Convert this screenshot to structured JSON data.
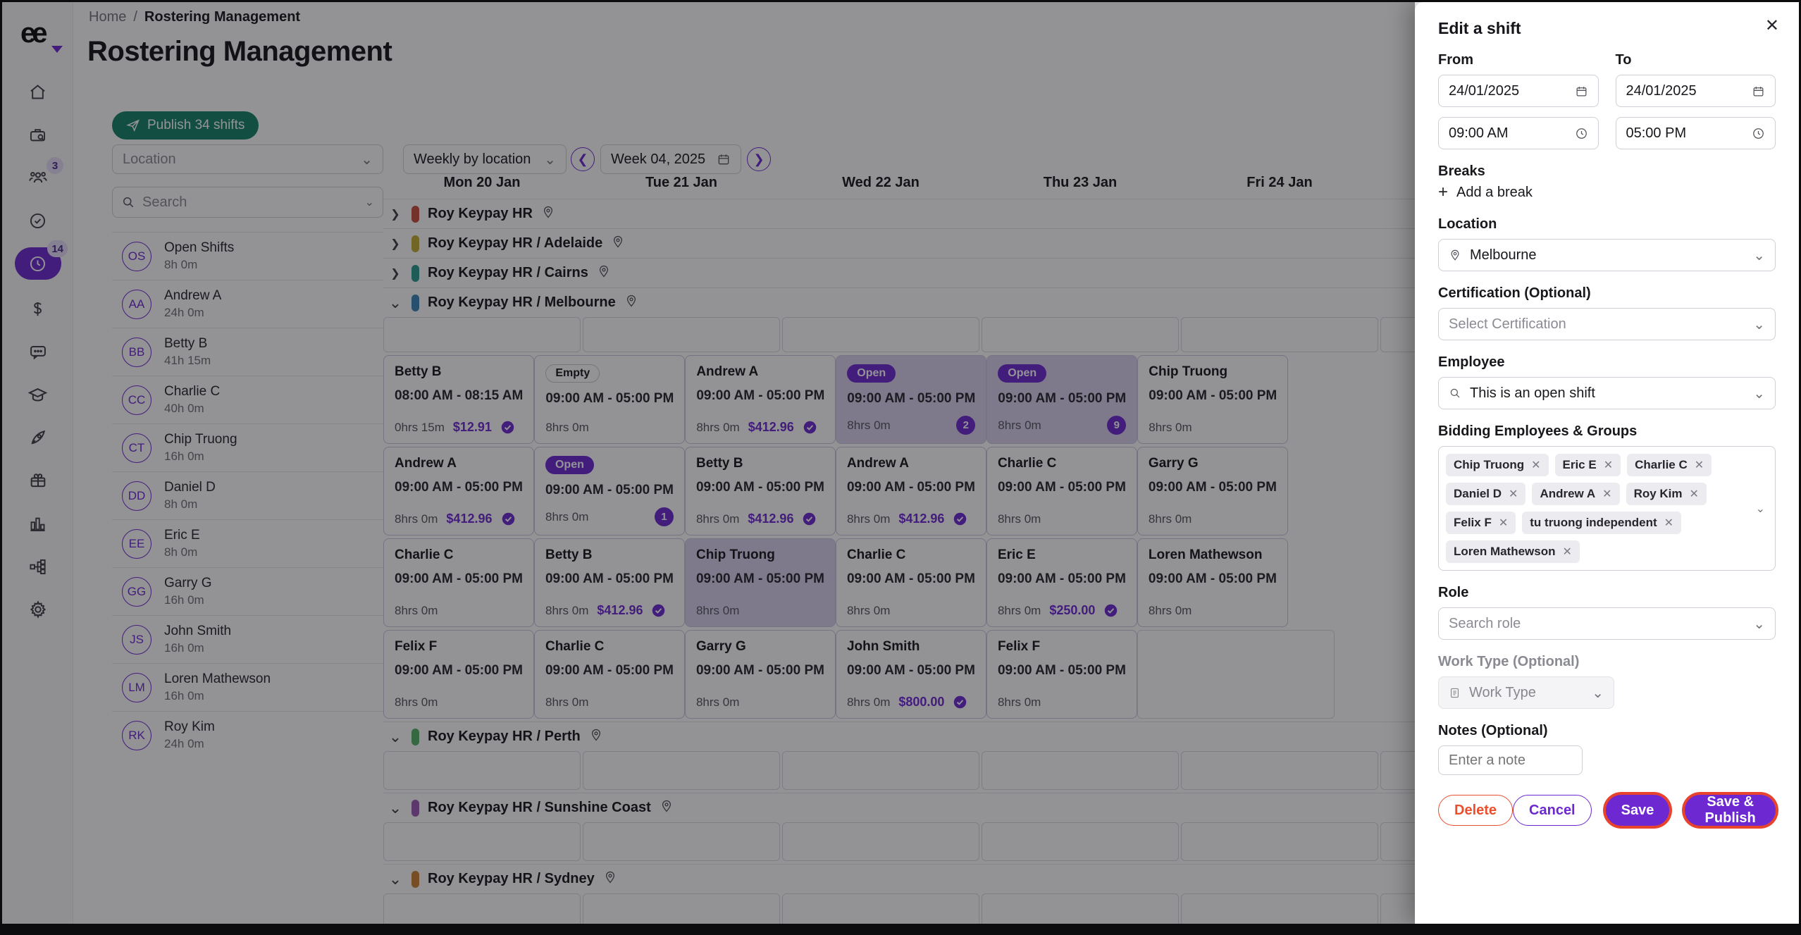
{
  "colors": {
    "accent": "#6d28d2",
    "publish_green": "#158468",
    "danger": "#e8502f",
    "focus_ring": "#e8432c"
  },
  "sidebar": {
    "people_badge": "3",
    "rostering_badge": "14",
    "icons": [
      "logo",
      "home-icon",
      "briefcase-search-icon",
      "people-icon",
      "check-circle-icon",
      "clock-icon",
      "dollar-icon",
      "chat-icon",
      "graduation-cap-icon",
      "rocket-icon",
      "gift-icon",
      "bar-chart-icon",
      "org-chart-icon",
      "gear-icon"
    ]
  },
  "breadcrumb": {
    "home": "Home",
    "separator": "/",
    "current": "Rostering Management"
  },
  "page_title": "Rostering Management",
  "toolbar": {
    "publish_label": "Publish 34 shifts",
    "location_placeholder": "Location",
    "view_value": "Weekly by location",
    "week_value": "Week 04, 2025"
  },
  "left_panel": {
    "search_placeholder": "Search",
    "rows": [
      {
        "initials": "OS",
        "name": "Open Shifts",
        "hours": "8h 0m"
      },
      {
        "initials": "AA",
        "name": "Andrew A",
        "hours": "24h 0m"
      },
      {
        "initials": "BB",
        "name": "Betty B",
        "hours": "41h 15m"
      },
      {
        "initials": "CC",
        "name": "Charlie C",
        "hours": "40h 0m"
      },
      {
        "initials": "CT",
        "name": "Chip Truong",
        "hours": "16h 0m"
      },
      {
        "initials": "DD",
        "name": "Daniel D",
        "hours": "8h 0m"
      },
      {
        "initials": "EE",
        "name": "Eric E",
        "hours": "8h 0m"
      },
      {
        "initials": "GG",
        "name": "Garry G",
        "hours": "16h 0m"
      },
      {
        "initials": "JS",
        "name": "John Smith",
        "hours": "16h 0m"
      },
      {
        "initials": "LM",
        "name": "Loren Mathewson",
        "hours": "16h 0m"
      },
      {
        "initials": "RK",
        "name": "Roy Kim",
        "hours": "24h 0m"
      }
    ]
  },
  "calendar": {
    "days": [
      "Mon 20 Jan",
      "Tue 21 Jan",
      "Wed 22 Jan",
      "Thu 23 Jan",
      "Fri 24 Jan",
      ""
    ],
    "groups": [
      {
        "name": "Roy Keypay HR",
        "color": "#c94f3d",
        "expanded": false,
        "rows": []
      },
      {
        "name": "Roy Keypay HR / Adelaide",
        "color": "#c2ad35",
        "expanded": false,
        "rows": []
      },
      {
        "name": "Roy Keypay HR / Cairns",
        "color": "#2a9d8f",
        "expanded": false,
        "rows": []
      },
      {
        "name": "Roy Keypay HR / Melbourne",
        "color": "#3d85b8",
        "expanded": true,
        "rows": [
          {
            "type": "slots",
            "size": "slot-sm"
          },
          {
            "type": "cards",
            "cells": [
              {
                "name": "Betty B",
                "time": "08:00 AM - 08:15 AM",
                "duration": "0hrs 15m",
                "pay": "$12.91",
                "paid": true
              },
              {
                "badge": "Empty",
                "badge_type": "empty",
                "time": "09:00 AM - 05:00 PM",
                "duration": "8hrs 0m"
              },
              {
                "name": "Andrew A",
                "time": "09:00 AM - 05:00 PM",
                "duration": "8hrs 0m",
                "pay": "$412.96",
                "paid": true
              },
              {
                "badge": "Open",
                "badge_type": "open",
                "time": "09:00 AM - 05:00 PM",
                "duration": "8hrs 0m",
                "count": "2",
                "hl": true
              },
              {
                "badge": "Open",
                "badge_type": "open",
                "time": "09:00 AM - 05:00 PM",
                "duration": "8hrs 0m",
                "count": "9",
                "hl": true
              },
              {
                "name": "Chip Truong",
                "time": "09:00 AM - 05:00 PM",
                "duration": "8hrs 0m"
              }
            ]
          },
          {
            "type": "cards",
            "cells": [
              {
                "name": "Andrew A",
                "time": "09:00 AM - 05:00 PM",
                "duration": "8hrs 0m",
                "pay": "$412.96",
                "paid": true
              },
              {
                "badge": "Open",
                "badge_type": "open",
                "time": "09:00 AM - 05:00 PM",
                "duration": "8hrs 0m",
                "count": "1"
              },
              {
                "name": "Betty B",
                "time": "09:00 AM - 05:00 PM",
                "duration": "8hrs 0m",
                "pay": "$412.96",
                "paid": true
              },
              {
                "name": "Andrew A",
                "time": "09:00 AM - 05:00 PM",
                "duration": "8hrs 0m",
                "pay": "$412.96",
                "paid": true
              },
              {
                "name": "Charlie C",
                "time": "09:00 AM - 05:00 PM",
                "duration": "8hrs 0m"
              },
              {
                "name": "Garry G",
                "time": "09:00 AM - 05:00 PM",
                "duration": "8hrs 0m"
              }
            ]
          },
          {
            "type": "cards",
            "cells": [
              {
                "name": "Charlie C",
                "time": "09:00 AM - 05:00 PM",
                "duration": "8hrs 0m"
              },
              {
                "name": "Betty B",
                "time": "09:00 AM - 05:00 PM",
                "duration": "8hrs 0m",
                "pay": "$412.96",
                "paid": true
              },
              {
                "name": "Chip Truong",
                "time": "09:00 AM - 05:00 PM",
                "duration": "8hrs 0m",
                "hl": true
              },
              {
                "name": "Charlie C",
                "time": "09:00 AM - 05:00 PM",
                "duration": "8hrs 0m"
              },
              {
                "name": "Eric E",
                "time": "09:00 AM - 05:00 PM",
                "duration": "8hrs 0m",
                "pay": "$250.00",
                "paid": true
              },
              {
                "name": "Loren Mathewson",
                "time": "09:00 AM - 05:00 PM",
                "duration": "8hrs 0m"
              }
            ]
          },
          {
            "type": "cards",
            "cells": [
              {
                "name": "Felix F",
                "time": "09:00 AM - 05:00 PM",
                "duration": "8hrs 0m"
              },
              {
                "name": "Charlie C",
                "time": "09:00 AM - 05:00 PM",
                "duration": "8hrs 0m"
              },
              {
                "name": "Garry G",
                "time": "09:00 AM - 05:00 PM",
                "duration": "8hrs 0m"
              },
              {
                "name": "John Smith",
                "time": "09:00 AM - 05:00 PM",
                "duration": "8hrs 0m",
                "pay": "$800.00",
                "paid": true
              },
              {
                "name": "Felix F",
                "time": "09:00 AM - 05:00 PM",
                "duration": "8hrs 0m"
              },
              {
                "blank": true
              }
            ]
          }
        ]
      },
      {
        "name": "Roy Keypay HR / Perth",
        "color": "#57b368",
        "expanded": true,
        "rows": [
          {
            "type": "slots",
            "size": "slot-lg"
          }
        ]
      },
      {
        "name": "Roy Keypay HR / Sunshine Coast",
        "color": "#9b59b6",
        "expanded": true,
        "rows": [
          {
            "type": "slots",
            "size": "slot-lg"
          }
        ]
      },
      {
        "name": "Roy Keypay HR / Sydney",
        "color": "#cc8033",
        "expanded": true,
        "rows": [
          {
            "type": "slots",
            "size": "slot-lg"
          }
        ]
      }
    ]
  },
  "edit_panel": {
    "title": "Edit a shift",
    "from_label": "From",
    "to_label": "To",
    "from_date": "24/01/2025",
    "to_date": "24/01/2025",
    "start_time": "09:00 AM",
    "end_time": "05:00 PM",
    "breaks_label": "Breaks",
    "add_break_label": "Add a break",
    "location_label": "Location",
    "location_value": "Melbourne",
    "certification_label": "Certification (Optional)",
    "certification_placeholder": "Select Certification",
    "employee_label": "Employee",
    "employee_value": "This is an open shift",
    "bidding_label": "Bidding Employees & Groups",
    "bidding_chips": [
      "Chip Truong",
      "Eric E",
      "Charlie C",
      "Daniel D",
      "Andrew A",
      "Roy Kim",
      "Felix F",
      "tu truong independent",
      "Loren Mathewson"
    ],
    "role_label": "Role",
    "role_placeholder": "Search role",
    "worktype_label": "Work Type (Optional)",
    "worktype_value": "Work Type",
    "notes_label": "Notes (Optional)",
    "notes_placeholder": "Enter a note",
    "delete_label": "Delete",
    "cancel_label": "Cancel",
    "save_label": "Save",
    "save_publish_label": "Save & Publish"
  }
}
